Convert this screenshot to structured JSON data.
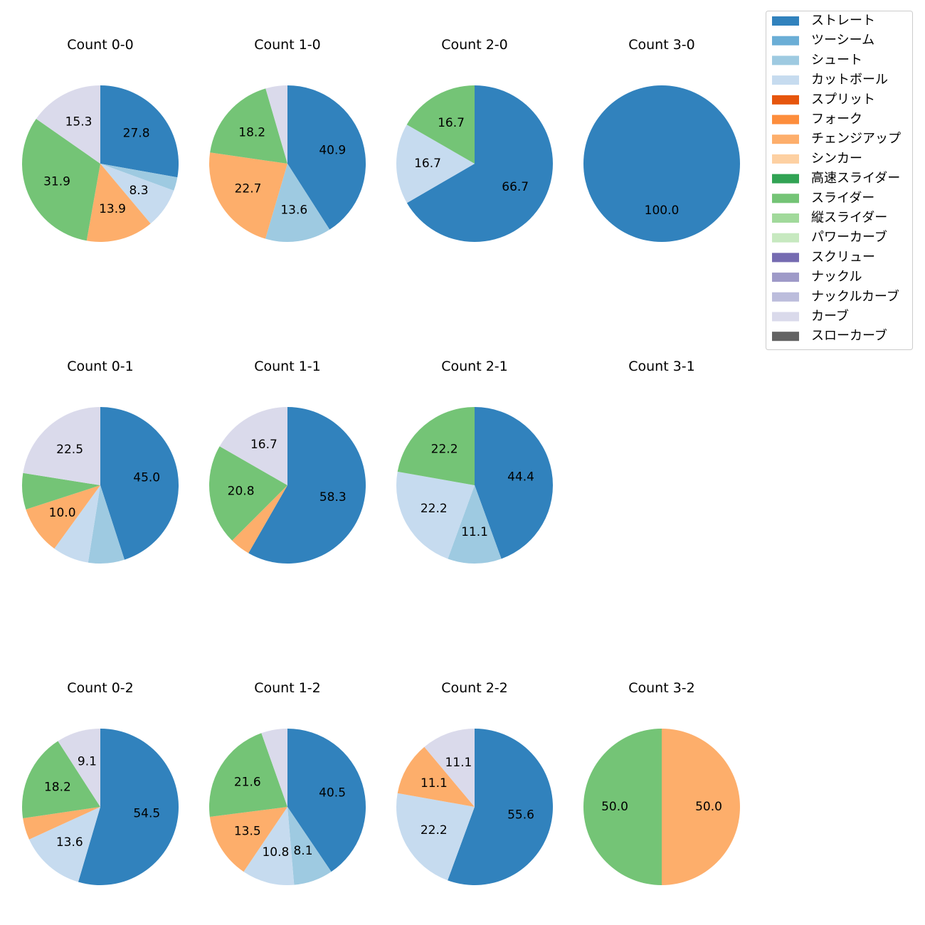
{
  "chart_data": {
    "type": "pie",
    "legend": {
      "placement": "top-right",
      "entries": [
        {
          "name": "ストレート",
          "color": "#3182bd"
        },
        {
          "name": "ツーシーム",
          "color": "#6baed6"
        },
        {
          "name": "シュート",
          "color": "#9ecae1"
        },
        {
          "name": "カットボール",
          "color": "#c6dbef"
        },
        {
          "name": "スプリット",
          "color": "#e6550d"
        },
        {
          "name": "フォーク",
          "color": "#fd8d3c"
        },
        {
          "name": "チェンジアップ",
          "color": "#fdae6b"
        },
        {
          "name": "シンカー",
          "color": "#fdd0a2"
        },
        {
          "name": "高速スライダー",
          "color": "#31a354"
        },
        {
          "name": "スライダー",
          "color": "#74c476"
        },
        {
          "name": "縦スライダー",
          "color": "#a1d99b"
        },
        {
          "name": "パワーカーブ",
          "color": "#c7e9c0"
        },
        {
          "name": "スクリュー",
          "color": "#756bb1"
        },
        {
          "name": "ナックル",
          "color": "#9e9ac8"
        },
        {
          "name": "ナックルカーブ",
          "color": "#bcbddc"
        },
        {
          "name": "カーブ",
          "color": "#dadaeb"
        },
        {
          "name": "スローカーブ",
          "color": "#636363"
        }
      ]
    },
    "charts": [
      {
        "title": "Count 0-0",
        "row": 0,
        "col": 0,
        "slices": [
          {
            "pitch": "ストレート",
            "value": 27.8,
            "label": "27.8"
          },
          {
            "pitch": "シュート",
            "value": 2.8,
            "label": ""
          },
          {
            "pitch": "カットボール",
            "value": 8.3,
            "label": "8.3"
          },
          {
            "pitch": "チェンジアップ",
            "value": 13.9,
            "label": "13.9"
          },
          {
            "pitch": "スライダー",
            "value": 31.9,
            "label": "31.9"
          },
          {
            "pitch": "カーブ",
            "value": 15.3,
            "label": "15.3"
          }
        ]
      },
      {
        "title": "Count 1-0",
        "row": 0,
        "col": 1,
        "slices": [
          {
            "pitch": "ストレート",
            "value": 40.9,
            "label": "40.9"
          },
          {
            "pitch": "シュート",
            "value": 13.6,
            "label": "13.6"
          },
          {
            "pitch": "チェンジアップ",
            "value": 22.7,
            "label": "22.7"
          },
          {
            "pitch": "スライダー",
            "value": 18.2,
            "label": "18.2"
          },
          {
            "pitch": "カーブ",
            "value": 4.5,
            "label": ""
          }
        ]
      },
      {
        "title": "Count 2-0",
        "row": 0,
        "col": 2,
        "slices": [
          {
            "pitch": "ストレート",
            "value": 66.7,
            "label": "66.7"
          },
          {
            "pitch": "カットボール",
            "value": 16.7,
            "label": "16.7"
          },
          {
            "pitch": "スライダー",
            "value": 16.7,
            "label": "16.7"
          }
        ]
      },
      {
        "title": "Count 3-0",
        "row": 0,
        "col": 3,
        "slices": [
          {
            "pitch": "ストレート",
            "value": 100.0,
            "label": "100.0"
          }
        ]
      },
      {
        "title": "Count 0-1",
        "row": 1,
        "col": 0,
        "slices": [
          {
            "pitch": "ストレート",
            "value": 45.0,
            "label": "45.0"
          },
          {
            "pitch": "シュート",
            "value": 7.5,
            "label": ""
          },
          {
            "pitch": "カットボール",
            "value": 7.5,
            "label": ""
          },
          {
            "pitch": "チェンジアップ",
            "value": 10.0,
            "label": "10.0"
          },
          {
            "pitch": "スライダー",
            "value": 7.5,
            "label": ""
          },
          {
            "pitch": "カーブ",
            "value": 22.5,
            "label": "22.5"
          }
        ]
      },
      {
        "title": "Count 1-1",
        "row": 1,
        "col": 1,
        "slices": [
          {
            "pitch": "ストレート",
            "value": 58.3,
            "label": "58.3"
          },
          {
            "pitch": "チェンジアップ",
            "value": 4.2,
            "label": ""
          },
          {
            "pitch": "スライダー",
            "value": 20.8,
            "label": "20.8"
          },
          {
            "pitch": "カーブ",
            "value": 16.7,
            "label": "16.7"
          }
        ]
      },
      {
        "title": "Count 2-1",
        "row": 1,
        "col": 2,
        "slices": [
          {
            "pitch": "ストレート",
            "value": 44.4,
            "label": "44.4"
          },
          {
            "pitch": "シュート",
            "value": 11.1,
            "label": "11.1"
          },
          {
            "pitch": "カットボール",
            "value": 22.2,
            "label": "22.2"
          },
          {
            "pitch": "スライダー",
            "value": 22.2,
            "label": "22.2"
          }
        ]
      },
      {
        "title": "Count 3-1",
        "row": 1,
        "col": 3,
        "slices": []
      },
      {
        "title": "Count 0-2",
        "row": 2,
        "col": 0,
        "slices": [
          {
            "pitch": "ストレート",
            "value": 54.5,
            "label": "54.5"
          },
          {
            "pitch": "カットボール",
            "value": 13.6,
            "label": "13.6"
          },
          {
            "pitch": "チェンジアップ",
            "value": 4.5,
            "label": ""
          },
          {
            "pitch": "スライダー",
            "value": 18.2,
            "label": "18.2"
          },
          {
            "pitch": "カーブ",
            "value": 9.1,
            "label": "9.1"
          }
        ]
      },
      {
        "title": "Count 1-2",
        "row": 2,
        "col": 1,
        "slices": [
          {
            "pitch": "ストレート",
            "value": 40.5,
            "label": "40.5"
          },
          {
            "pitch": "シュート",
            "value": 8.1,
            "label": "8.1"
          },
          {
            "pitch": "カットボール",
            "value": 10.8,
            "label": "10.8"
          },
          {
            "pitch": "チェンジアップ",
            "value": 13.5,
            "label": "13.5"
          },
          {
            "pitch": "スライダー",
            "value": 21.6,
            "label": "21.6"
          },
          {
            "pitch": "カーブ",
            "value": 5.4,
            "label": ""
          }
        ]
      },
      {
        "title": "Count 2-2",
        "row": 2,
        "col": 2,
        "slices": [
          {
            "pitch": "ストレート",
            "value": 55.6,
            "label": "55.6"
          },
          {
            "pitch": "カットボール",
            "value": 22.2,
            "label": "22.2"
          },
          {
            "pitch": "チェンジアップ",
            "value": 11.1,
            "label": "11.1"
          },
          {
            "pitch": "カーブ",
            "value": 11.1,
            "label": "11.1"
          }
        ]
      },
      {
        "title": "Count 3-2",
        "row": 2,
        "col": 3,
        "slices": [
          {
            "pitch": "チェンジアップ",
            "value": 50.0,
            "label": "50.0"
          },
          {
            "pitch": "スライダー",
            "value": 50.0,
            "label": "50.0"
          }
        ]
      }
    ]
  }
}
